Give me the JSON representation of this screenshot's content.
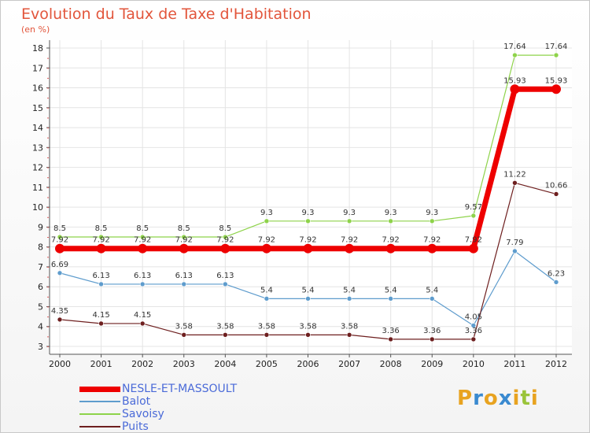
{
  "header": {
    "title": "Evolution du Taux de Taxe d'Habitation",
    "subtitle": "(en %)"
  },
  "logo": {
    "letters": [
      "P",
      "r",
      "o",
      "x",
      "i",
      "t",
      "i"
    ],
    "colors": [
      "#e8a320",
      "#3a8ad0",
      "#e8a320",
      "#3a8ad0",
      "#e8a320",
      "#9ac43a",
      "#e8a320"
    ]
  },
  "chart_data": {
    "type": "line",
    "title": "Evolution du Taux de Taxe d'Habitation",
    "subtitle": "(en %)",
    "xlabel": "",
    "ylabel": "",
    "x": [
      "2000",
      "2001",
      "2002",
      "2003",
      "2004",
      "2005",
      "2006",
      "2007",
      "2008",
      "2009",
      "2010",
      "2011",
      "2012"
    ],
    "ylim": [
      3,
      18
    ],
    "yticks": [
      3,
      4,
      5,
      6,
      7,
      8,
      9,
      10,
      11,
      12,
      13,
      14,
      15,
      16,
      17,
      18
    ],
    "grid": true,
    "legend": "bottom-left",
    "series": [
      {
        "name": "NESLE-ET-MASSOULT",
        "color": "#ee0000",
        "values": [
          7.92,
          7.92,
          7.92,
          7.92,
          7.92,
          7.92,
          7.92,
          7.92,
          7.92,
          7.92,
          7.92,
          15.93,
          15.93
        ],
        "labels": [
          "7.92",
          "7.92",
          "7.92",
          "7.92",
          "7.92",
          "7.92",
          "7.92",
          "7.92",
          "7.92",
          "7.92",
          "7.92",
          "15.93",
          "15.93"
        ]
      },
      {
        "name": "Balot",
        "color": "#5e9ccd",
        "values": [
          6.69,
          6.13,
          6.13,
          6.13,
          6.13,
          5.4,
          5.4,
          5.4,
          5.4,
          5.4,
          4.05,
          7.79,
          6.23
        ],
        "labels": [
          "6.69",
          "6.13",
          "6.13",
          "6.13",
          "6.13",
          "5.4",
          "5.4",
          "5.4",
          "5.4",
          "5.4",
          "4.05",
          "7.79",
          "6.23"
        ]
      },
      {
        "name": "Savoisy",
        "color": "#8ed34a",
        "values": [
          8.5,
          8.5,
          8.5,
          8.5,
          8.5,
          9.3,
          9.3,
          9.3,
          9.3,
          9.3,
          9.57,
          17.64,
          17.64
        ],
        "labels": [
          "8.5",
          "8.5",
          "8.5",
          "8.5",
          "8.5",
          "9.3",
          "9.3",
          "9.3",
          "9.3",
          "9.3",
          "9.57",
          "17.64",
          "17.64"
        ]
      },
      {
        "name": "Puits",
        "color": "#6e1f1f",
        "values": [
          4.35,
          4.15,
          4.15,
          3.58,
          3.58,
          3.58,
          3.58,
          3.58,
          3.36,
          3.36,
          3.36,
          11.22,
          10.66
        ],
        "labels": [
          "4.35",
          "4.15",
          "4.15",
          "3.58",
          "3.58",
          "3.58",
          "3.58",
          "3.58",
          "3.36",
          "3.36",
          "3.36",
          "11.22",
          "10.66"
        ]
      }
    ]
  }
}
